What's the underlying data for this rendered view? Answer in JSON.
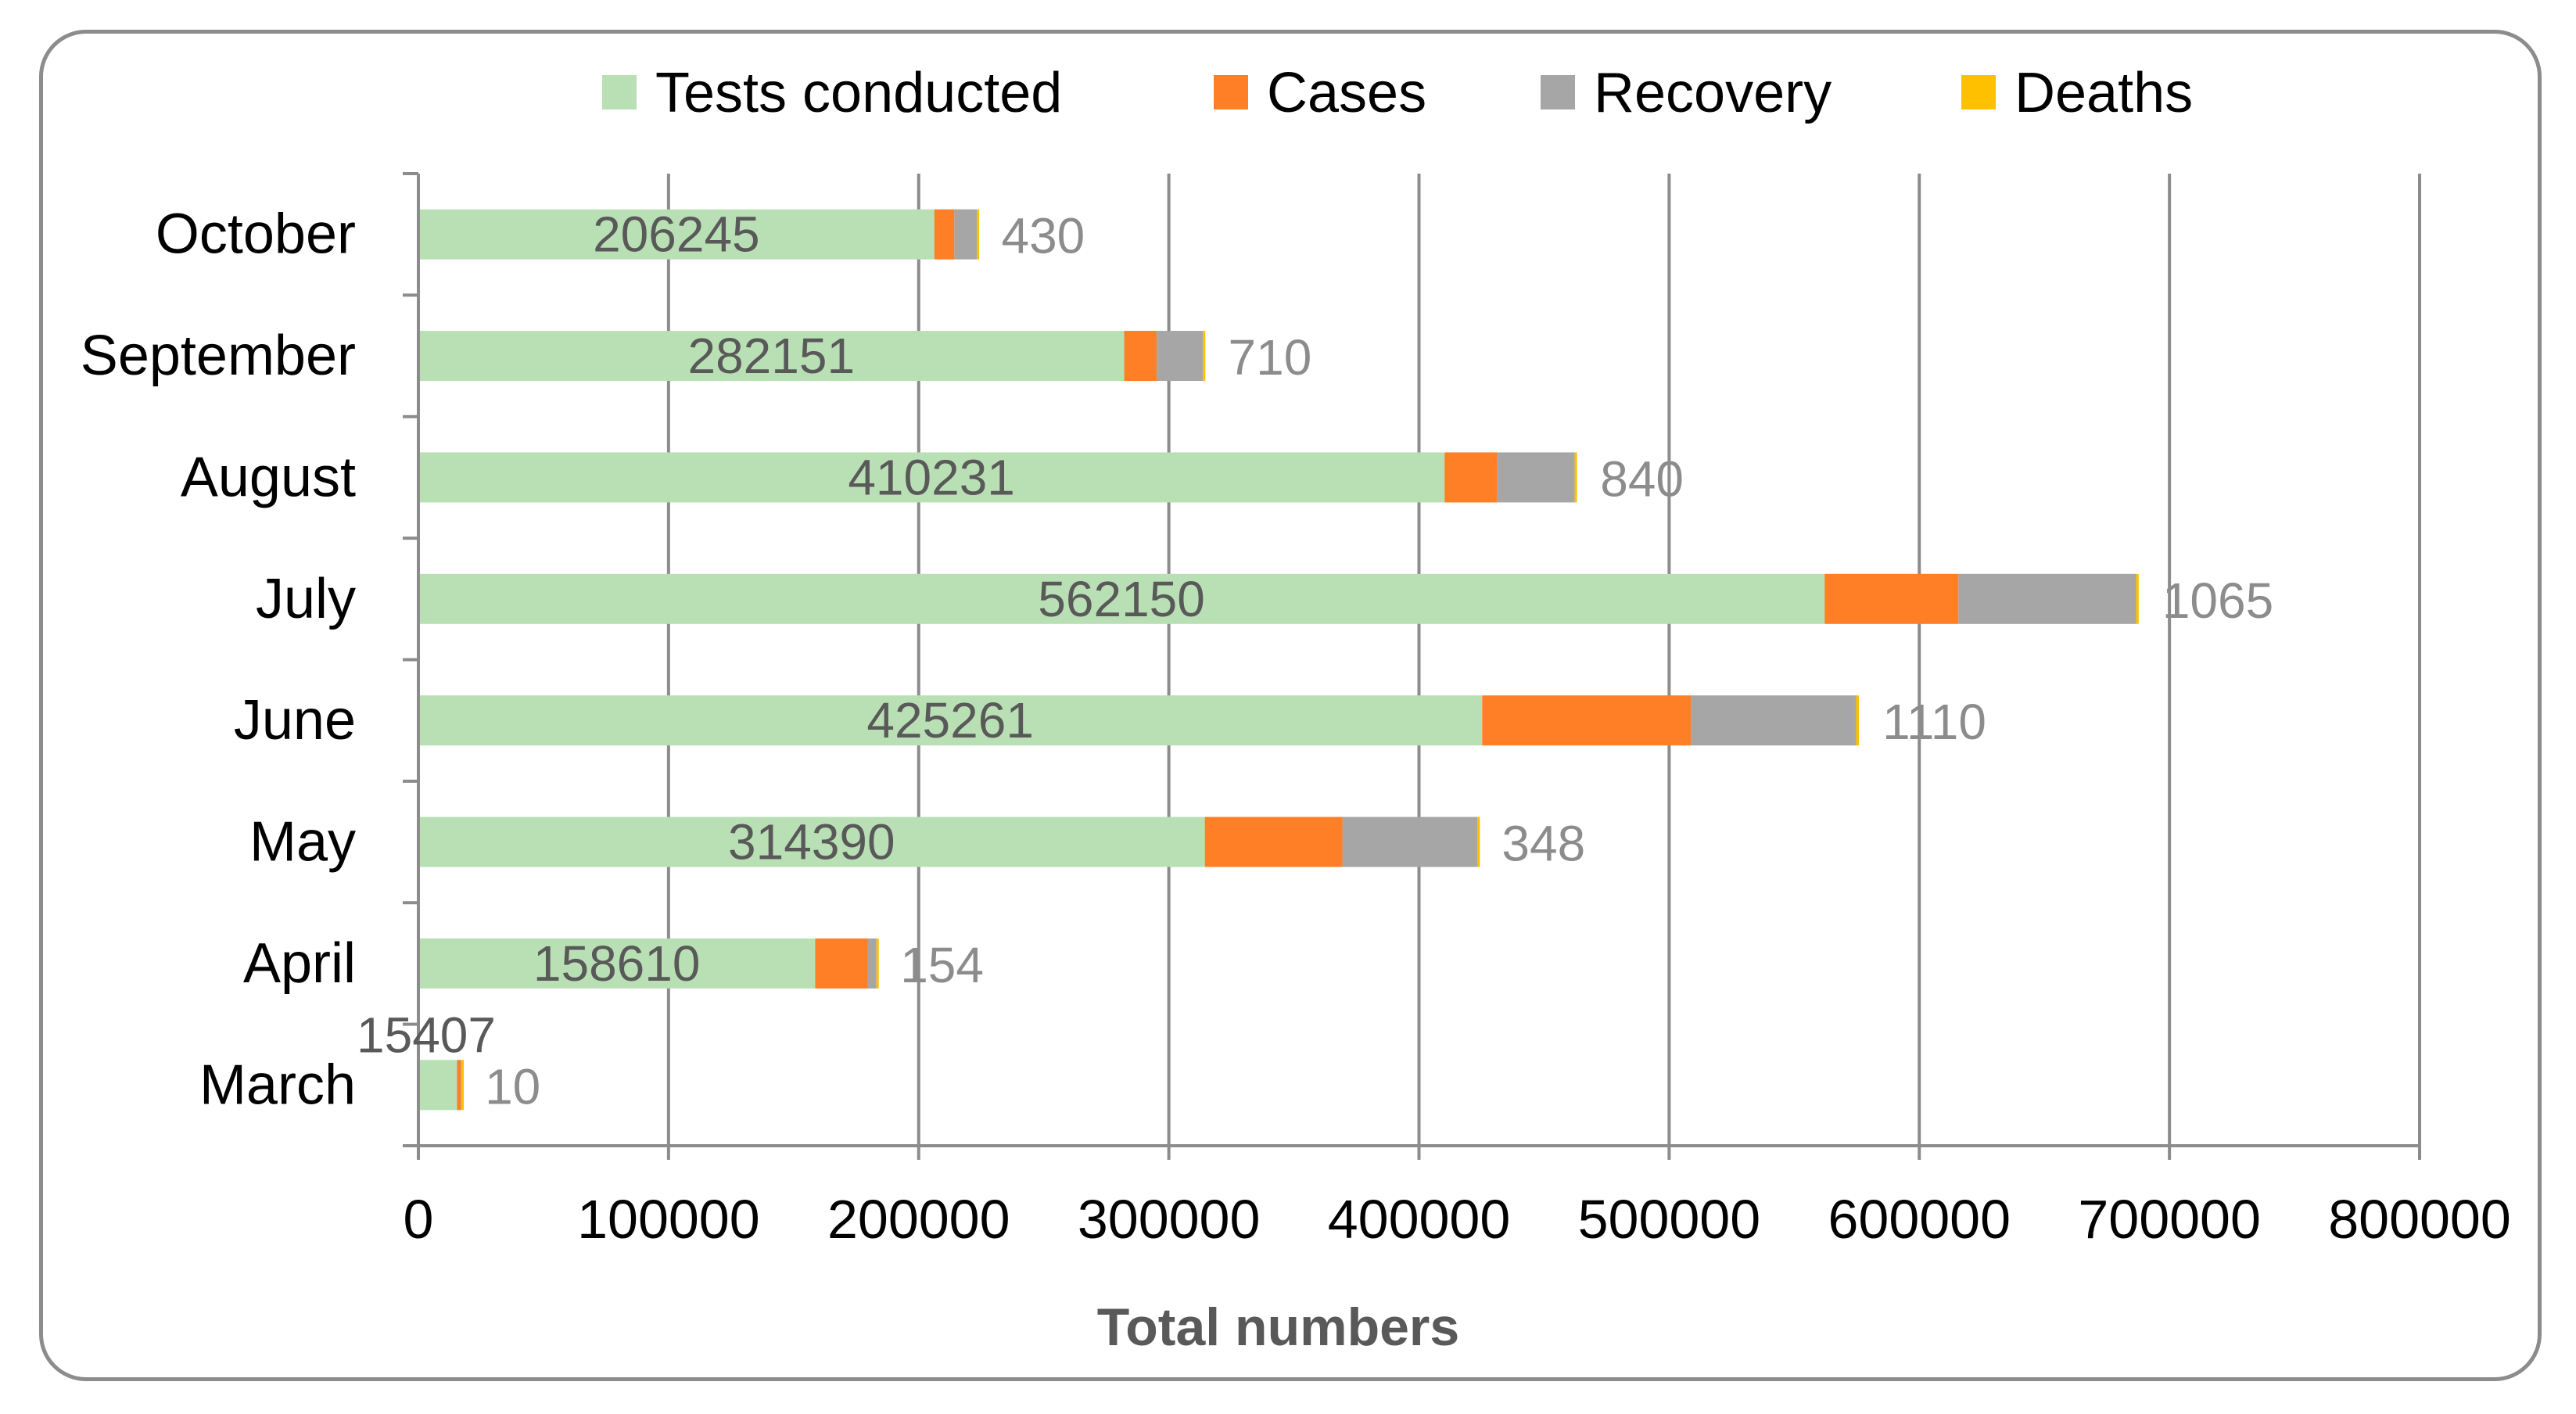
{
  "chart_data": {
    "type": "bar",
    "orientation": "horizontal",
    "stacked": true,
    "categories": [
      "October",
      "September",
      "August",
      "July",
      "June",
      "May",
      "April",
      "March"
    ],
    "series": [
      {
        "name": "Tests conducted",
        "color": "#b9e0b4",
        "values": [
          206245,
          282151,
          410231,
          562150,
          425261,
          314390,
          158610,
          15407
        ]
      },
      {
        "name": "Cases",
        "color": "#ff7f27",
        "values": [
          8000,
          13000,
          21000,
          53500,
          83500,
          55000,
          21000,
          1500
        ]
      },
      {
        "name": "Recovery",
        "color": "#a6a6a6",
        "values": [
          9000,
          18500,
          31000,
          71000,
          66000,
          54000,
          3500,
          300
        ]
      },
      {
        "name": "Deaths",
        "color": "#ffc000",
        "values": [
          430,
          710,
          840,
          1065,
          1110,
          348,
          154,
          10
        ]
      }
    ],
    "data_labels": {
      "tests": [
        "206245",
        "282151",
        "410231",
        "562150",
        "425261",
        "314390",
        "158610",
        "15407"
      ],
      "deaths": [
        "430",
        "710",
        "840",
        "1065",
        "1110",
        "348",
        "154",
        "10"
      ]
    },
    "xlabel": "Total numbers",
    "ylabel": "",
    "xlim": [
      0,
      800000
    ],
    "xticks": [
      0,
      100000,
      200000,
      300000,
      400000,
      500000,
      600000,
      700000,
      800000
    ],
    "xtick_labels": [
      "0",
      "100000",
      "200000",
      "300000",
      "400000",
      "500000",
      "600000",
      "700000",
      "800000"
    ],
    "grid": "vertical",
    "legend_position": "top"
  }
}
